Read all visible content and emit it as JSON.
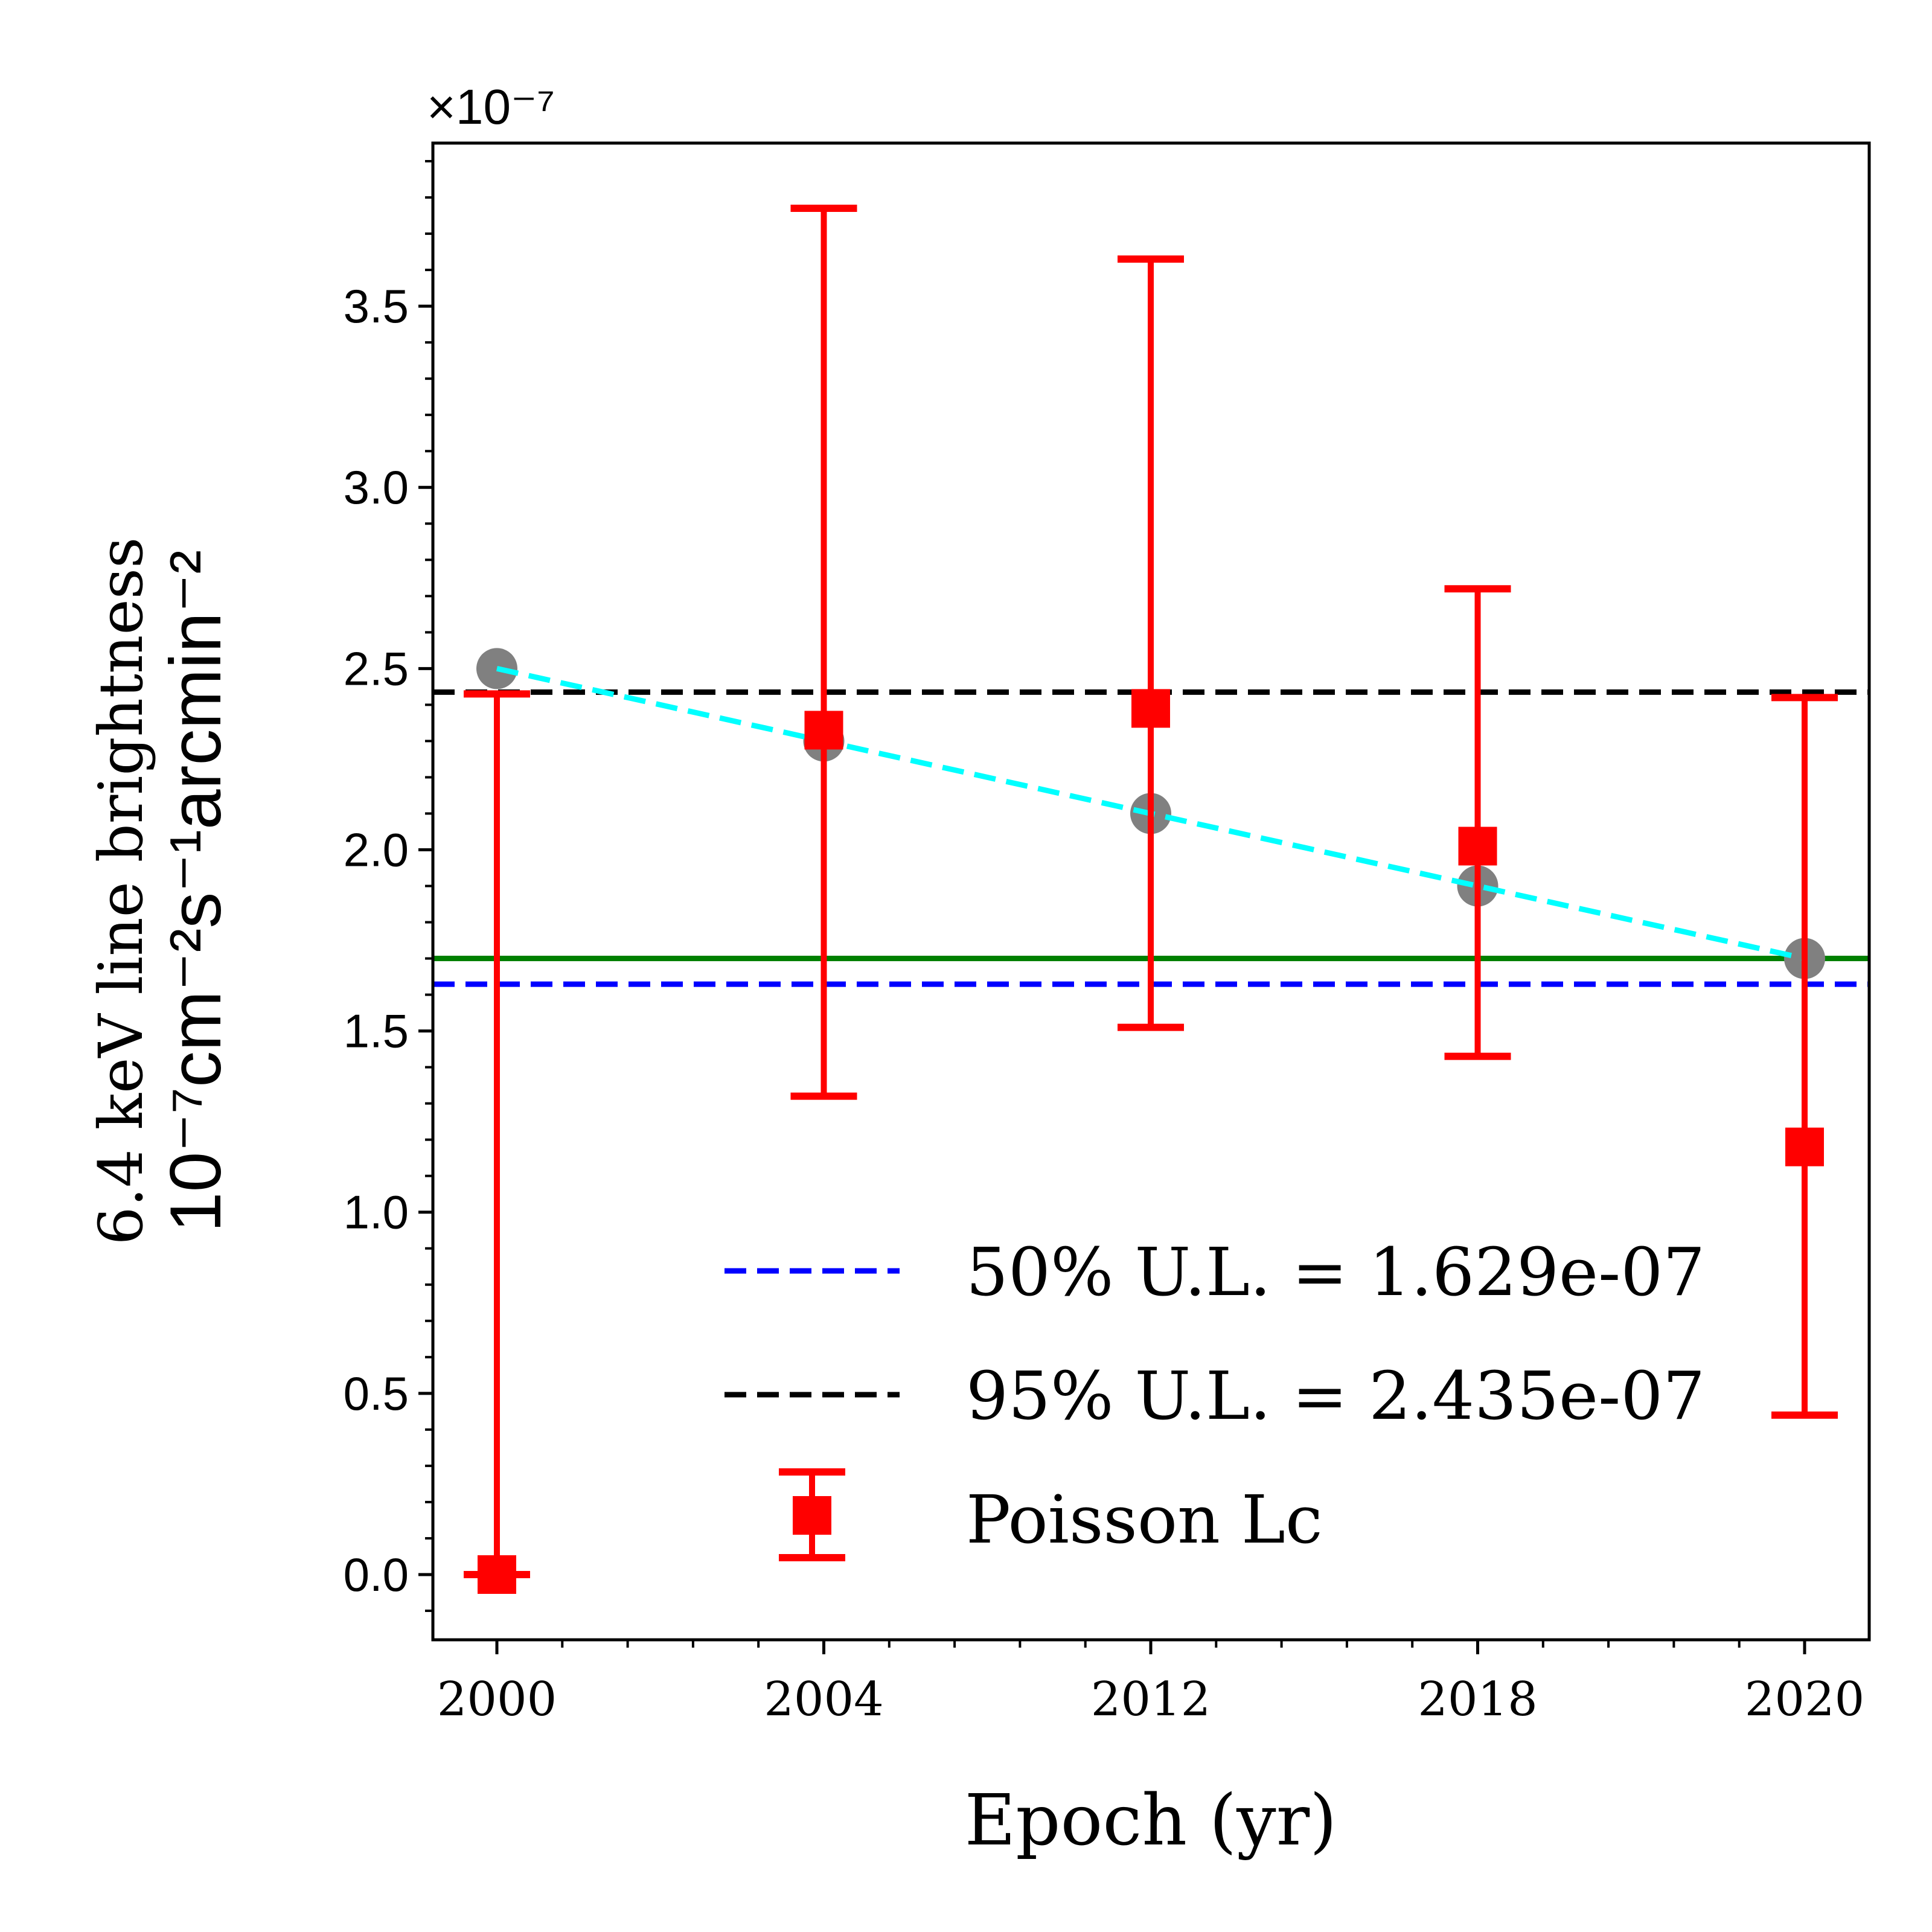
{
  "chart_data": {
    "type": "scatter",
    "xlabel": "Epoch (yr)",
    "ylabel_line1": "6.4 keV line brightness",
    "ylabel_line2": "10⁻⁷cm⁻²s⁻¹arcmin⁻²",
    "offset_text": "×10⁻⁷",
    "categories": [
      "2000",
      "2004",
      "2012",
      "2018",
      "2020"
    ],
    "y_scale": 1e-07,
    "ylim": [
      -0.18,
      3.95
    ],
    "yticks": [
      0.0,
      0.5,
      1.0,
      1.5,
      2.0,
      2.5,
      3.0,
      3.5
    ],
    "ytick_labels": [
      "0.0",
      "0.5",
      "1.0",
      "1.5",
      "2.0",
      "2.5",
      "3.0",
      "3.5"
    ],
    "series": [
      {
        "name": "Poisson Lc",
        "kind": "errorbar",
        "color": "#ff0000",
        "values": [
          0.0,
          2.33,
          2.39,
          2.01,
          1.18
        ],
        "lower": [
          0.0,
          1.32,
          1.51,
          1.43,
          0.44
        ],
        "upper": [
          2.43,
          3.77,
          3.63,
          2.72,
          2.42
        ]
      },
      {
        "kind": "model",
        "color": "#808080",
        "line_color": "#00ffff",
        "values": [
          2.5,
          2.3,
          2.1,
          1.9,
          1.7
        ]
      }
    ],
    "hlines": [
      {
        "name": "50% U.L. = 1.629e-07",
        "value": 1.629,
        "color": "#0000ff",
        "style": "dashed"
      },
      {
        "name": "95% U.L. = 2.435e-07",
        "value": 2.435,
        "color": "#000000",
        "style": "dashed"
      },
      {
        "value": 1.7,
        "color": "#008000",
        "style": "solid"
      }
    ],
    "legend": {
      "position": "lower-right",
      "entries": [
        "50% U.L. = 1.629e-07",
        "95% U.L. = 2.435e-07",
        "Poisson Lc"
      ]
    },
    "grid": false
  }
}
